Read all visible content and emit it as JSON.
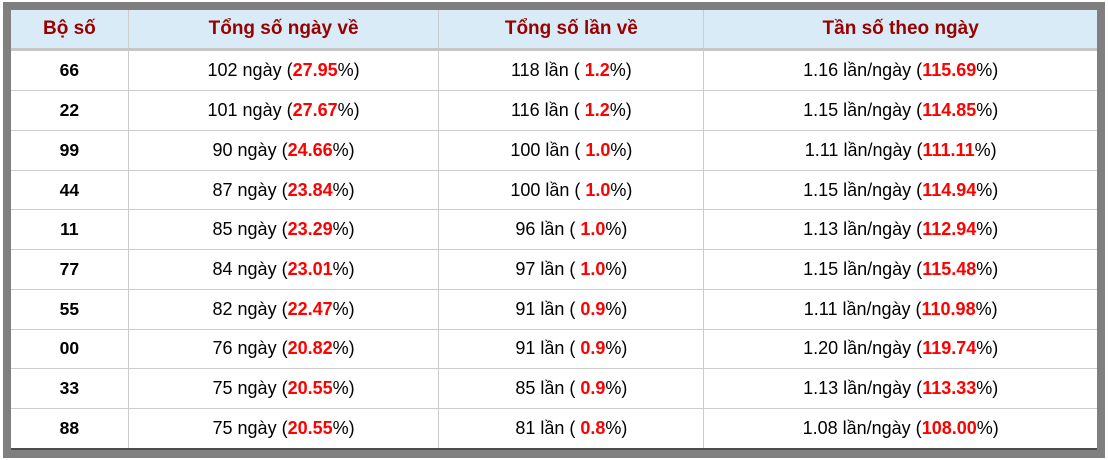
{
  "colors": {
    "frame_gray": "#7f7f7f",
    "header_bg": "#d8ebf6",
    "header_text": "#990000",
    "accent_red": "#ff0000",
    "grid_line": "#cccccc"
  },
  "table": {
    "columns": [
      "Bộ số",
      "Tổng số ngày về",
      "Tổng số lần về",
      "Tần số theo ngày"
    ],
    "rows": [
      {
        "pair": "66",
        "days_pre": "102 ngày (",
        "days_red": "27.95",
        "days_post": "%)",
        "times_pre": "118 lần ( ",
        "times_red": "1.2",
        "times_post": "%)",
        "freq_pre": "1.16 lần/ngày (",
        "freq_red": "115.69",
        "freq_post": "%)"
      },
      {
        "pair": "22",
        "days_pre": "101 ngày (",
        "days_red": "27.67",
        "days_post": "%)",
        "times_pre": "116 lần ( ",
        "times_red": "1.2",
        "times_post": "%)",
        "freq_pre": "1.15 lần/ngày (",
        "freq_red": "114.85",
        "freq_post": "%)"
      },
      {
        "pair": "99",
        "days_pre": "90 ngày (",
        "days_red": "24.66",
        "days_post": "%)",
        "times_pre": "100 lần ( ",
        "times_red": "1.0",
        "times_post": "%)",
        "freq_pre": "1.11 lần/ngày (",
        "freq_red": "111.11",
        "freq_post": "%)"
      },
      {
        "pair": "44",
        "days_pre": "87 ngày (",
        "days_red": "23.84",
        "days_post": "%)",
        "times_pre": "100 lần ( ",
        "times_red": "1.0",
        "times_post": "%)",
        "freq_pre": "1.15 lần/ngày (",
        "freq_red": "114.94",
        "freq_post": "%)"
      },
      {
        "pair": "11",
        "days_pre": "85 ngày (",
        "days_red": "23.29",
        "days_post": "%)",
        "times_pre": "96 lần ( ",
        "times_red": "1.0",
        "times_post": "%)",
        "freq_pre": "1.13 lần/ngày (",
        "freq_red": "112.94",
        "freq_post": "%)"
      },
      {
        "pair": "77",
        "days_pre": "84 ngày (",
        "days_red": "23.01",
        "days_post": "%)",
        "times_pre": "97 lần ( ",
        "times_red": "1.0",
        "times_post": "%)",
        "freq_pre": "1.15 lần/ngày (",
        "freq_red": "115.48",
        "freq_post": "%)"
      },
      {
        "pair": "55",
        "days_pre": "82 ngày (",
        "days_red": "22.47",
        "days_post": "%)",
        "times_pre": "91 lần ( ",
        "times_red": "0.9",
        "times_post": "%)",
        "freq_pre": "1.11 lần/ngày (",
        "freq_red": "110.98",
        "freq_post": "%)"
      },
      {
        "pair": "00",
        "days_pre": "76 ngày (",
        "days_red": "20.82",
        "days_post": "%)",
        "times_pre": "91 lần ( ",
        "times_red": "0.9",
        "times_post": "%)",
        "freq_pre": "1.20 lần/ngày (",
        "freq_red": "119.74",
        "freq_post": "%)"
      },
      {
        "pair": "33",
        "days_pre": "75 ngày (",
        "days_red": "20.55",
        "days_post": "%)",
        "times_pre": "85 lần ( ",
        "times_red": "0.9",
        "times_post": "%)",
        "freq_pre": "1.13 lần/ngày (",
        "freq_red": "113.33",
        "freq_post": "%)"
      },
      {
        "pair": "88",
        "days_pre": "75 ngày (",
        "days_red": "20.55",
        "days_post": "%)",
        "times_pre": "81 lần ( ",
        "times_red": "0.8",
        "times_post": "%)",
        "freq_pre": "1.08 lần/ngày (",
        "freq_red": "108.00",
        "freq_post": "%)"
      }
    ]
  },
  "chart_data": {
    "type": "table",
    "columns": [
      "Bộ số",
      "Tổng số ngày về",
      "Tổng số lần về",
      "Tần số theo ngày"
    ],
    "rows": [
      [
        "66",
        "102 ngày (27.95%)",
        "118 lần ( 1.2%)",
        "1.16 lần/ngày (115.69%)"
      ],
      [
        "22",
        "101 ngày (27.67%)",
        "116 lần ( 1.2%)",
        "1.15 lần/ngày (114.85%)"
      ],
      [
        "99",
        "90 ngày (24.66%)",
        "100 lần ( 1.0%)",
        "1.11 lần/ngày (111.11%)"
      ],
      [
        "44",
        "87 ngày (23.84%)",
        "100 lần ( 1.0%)",
        "1.15 lần/ngày (114.94%)"
      ],
      [
        "11",
        "85 ngày (23.29%)",
        "96 lần ( 1.0%)",
        "1.13 lần/ngày (112.94%)"
      ],
      [
        "77",
        "84 ngày (23.01%)",
        "97 lần ( 1.0%)",
        "1.15 lần/ngày (115.48%)"
      ],
      [
        "55",
        "82 ngày (22.47%)",
        "91 lần ( 0.9%)",
        "1.11 lần/ngày (110.98%)"
      ],
      [
        "00",
        "76 ngày (20.82%)",
        "91 lần ( 0.9%)",
        "1.20 lần/ngày (119.74%)"
      ],
      [
        "33",
        "75 ngày (20.55%)",
        "85 lần ( 0.9%)",
        "1.13 lần/ngày (113.33%)"
      ],
      [
        "88",
        "75 ngày (20.55%)",
        "81 lần ( 0.8%)",
        "1.08 lần/ngày (108.00%)"
      ]
    ]
  }
}
